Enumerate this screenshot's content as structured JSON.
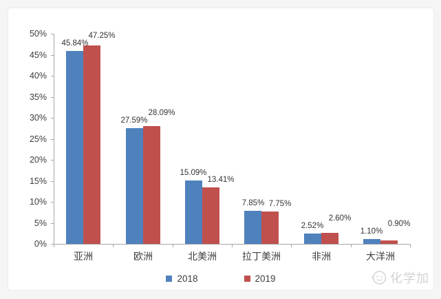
{
  "chart_data": {
    "type": "bar",
    "title": "",
    "categories": [
      "亚洲",
      "欧洲",
      "北美洲",
      "拉丁美洲",
      "非洲",
      "大洋洲"
    ],
    "series": [
      {
        "name": "2018",
        "color": "#4F81BD",
        "values": [
          45.84,
          27.59,
          15.09,
          7.85,
          2.52,
          1.1
        ]
      },
      {
        "name": "2019",
        "color": "#C0504D",
        "values": [
          47.25,
          28.09,
          13.41,
          7.75,
          2.6,
          0.9
        ]
      }
    ],
    "data_labels": {
      "s2018": [
        "45.84%",
        "27.59%",
        "15.09%",
        "7.85%",
        "2.52%",
        "1.10%"
      ],
      "s2019": [
        "47.25%",
        "28.09%",
        "13.41%",
        "7.75%",
        "2.60%",
        "0.90%"
      ]
    },
    "xlabel": "",
    "ylabel": "",
    "ylim": [
      0,
      50
    ],
    "ytick_step": 5,
    "ytick_labels": [
      "0%",
      "5%",
      "10%",
      "15%",
      "20%",
      "25%",
      "30%",
      "35%",
      "40%",
      "45%",
      "50%"
    ],
    "grid": false,
    "legend_position": "bottom",
    "red_label_raised": [
      true,
      true,
      false,
      false,
      true,
      true
    ]
  },
  "legend": {
    "items": [
      {
        "label": "2018",
        "color": "#4F81BD"
      },
      {
        "label": "2019",
        "color": "#C0504D"
      }
    ]
  },
  "watermark": {
    "text": "化学加"
  },
  "colors": {
    "page_bg": "#f5f5f6",
    "card_bg": "#ffffff",
    "axis": "#a6a6a6",
    "text": "#3d3d3d",
    "blue": "#4F81BD",
    "red": "#C0504D"
  }
}
